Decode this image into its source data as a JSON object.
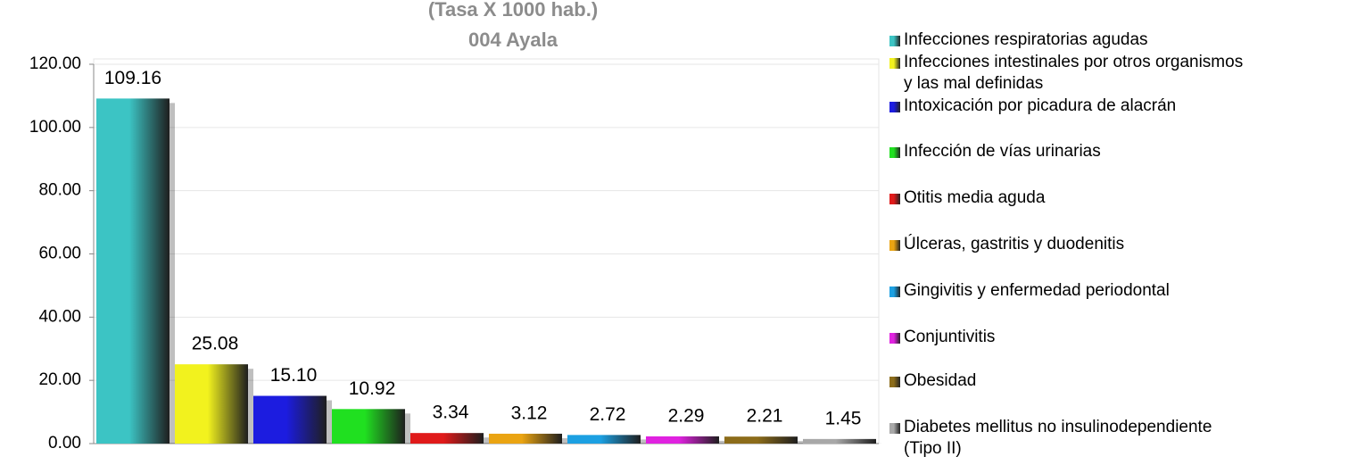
{
  "chart_data": {
    "type": "bar",
    "title": "(Tasa X 1000 hab.)",
    "subtitle": "004 Ayala",
    "categories": [
      "Infecciones respiratorias agudas",
      "Infecciones intestinales por otros organismos\ny las mal definidas",
      "Intoxicación por picadura de alacrán",
      "Infección de vías urinarias",
      "Otitis media aguda",
      "Úlceras, gastritis y duodenitis",
      "Gingivitis y enfermedad periodontal",
      "Conjuntivitis",
      "Obesidad",
      "Diabetes mellitus no insulinodependiente\n(Tipo II)"
    ],
    "values": [
      109.16,
      25.08,
      15.1,
      10.92,
      3.34,
      3.12,
      2.72,
      2.29,
      2.21,
      1.45
    ],
    "value_labels": [
      "109.16",
      "25.08",
      "15.10",
      "10.92",
      "3.34",
      "3.12",
      "2.72",
      "2.29",
      "2.21",
      "1.45"
    ],
    "colors": [
      "#3cc4c4",
      "#f2f21e",
      "#1c1ce0",
      "#20e020",
      "#e01a1a",
      "#eaa412",
      "#1ca0e2",
      "#e022e0",
      "#8c6c1a",
      "#a8a8a8"
    ],
    "ylim": [
      0,
      120
    ],
    "yticks": [
      {
        "value": 0,
        "label": "0.00"
      },
      {
        "value": 20,
        "label": "20.00"
      },
      {
        "value": 40,
        "label": "40.00"
      },
      {
        "value": 60,
        "label": "60.00"
      },
      {
        "value": 80,
        "label": "80.00"
      },
      {
        "value": 100,
        "label": "100.00"
      },
      {
        "value": 120,
        "label": "120.00"
      }
    ],
    "grid": true,
    "legend": "right"
  }
}
